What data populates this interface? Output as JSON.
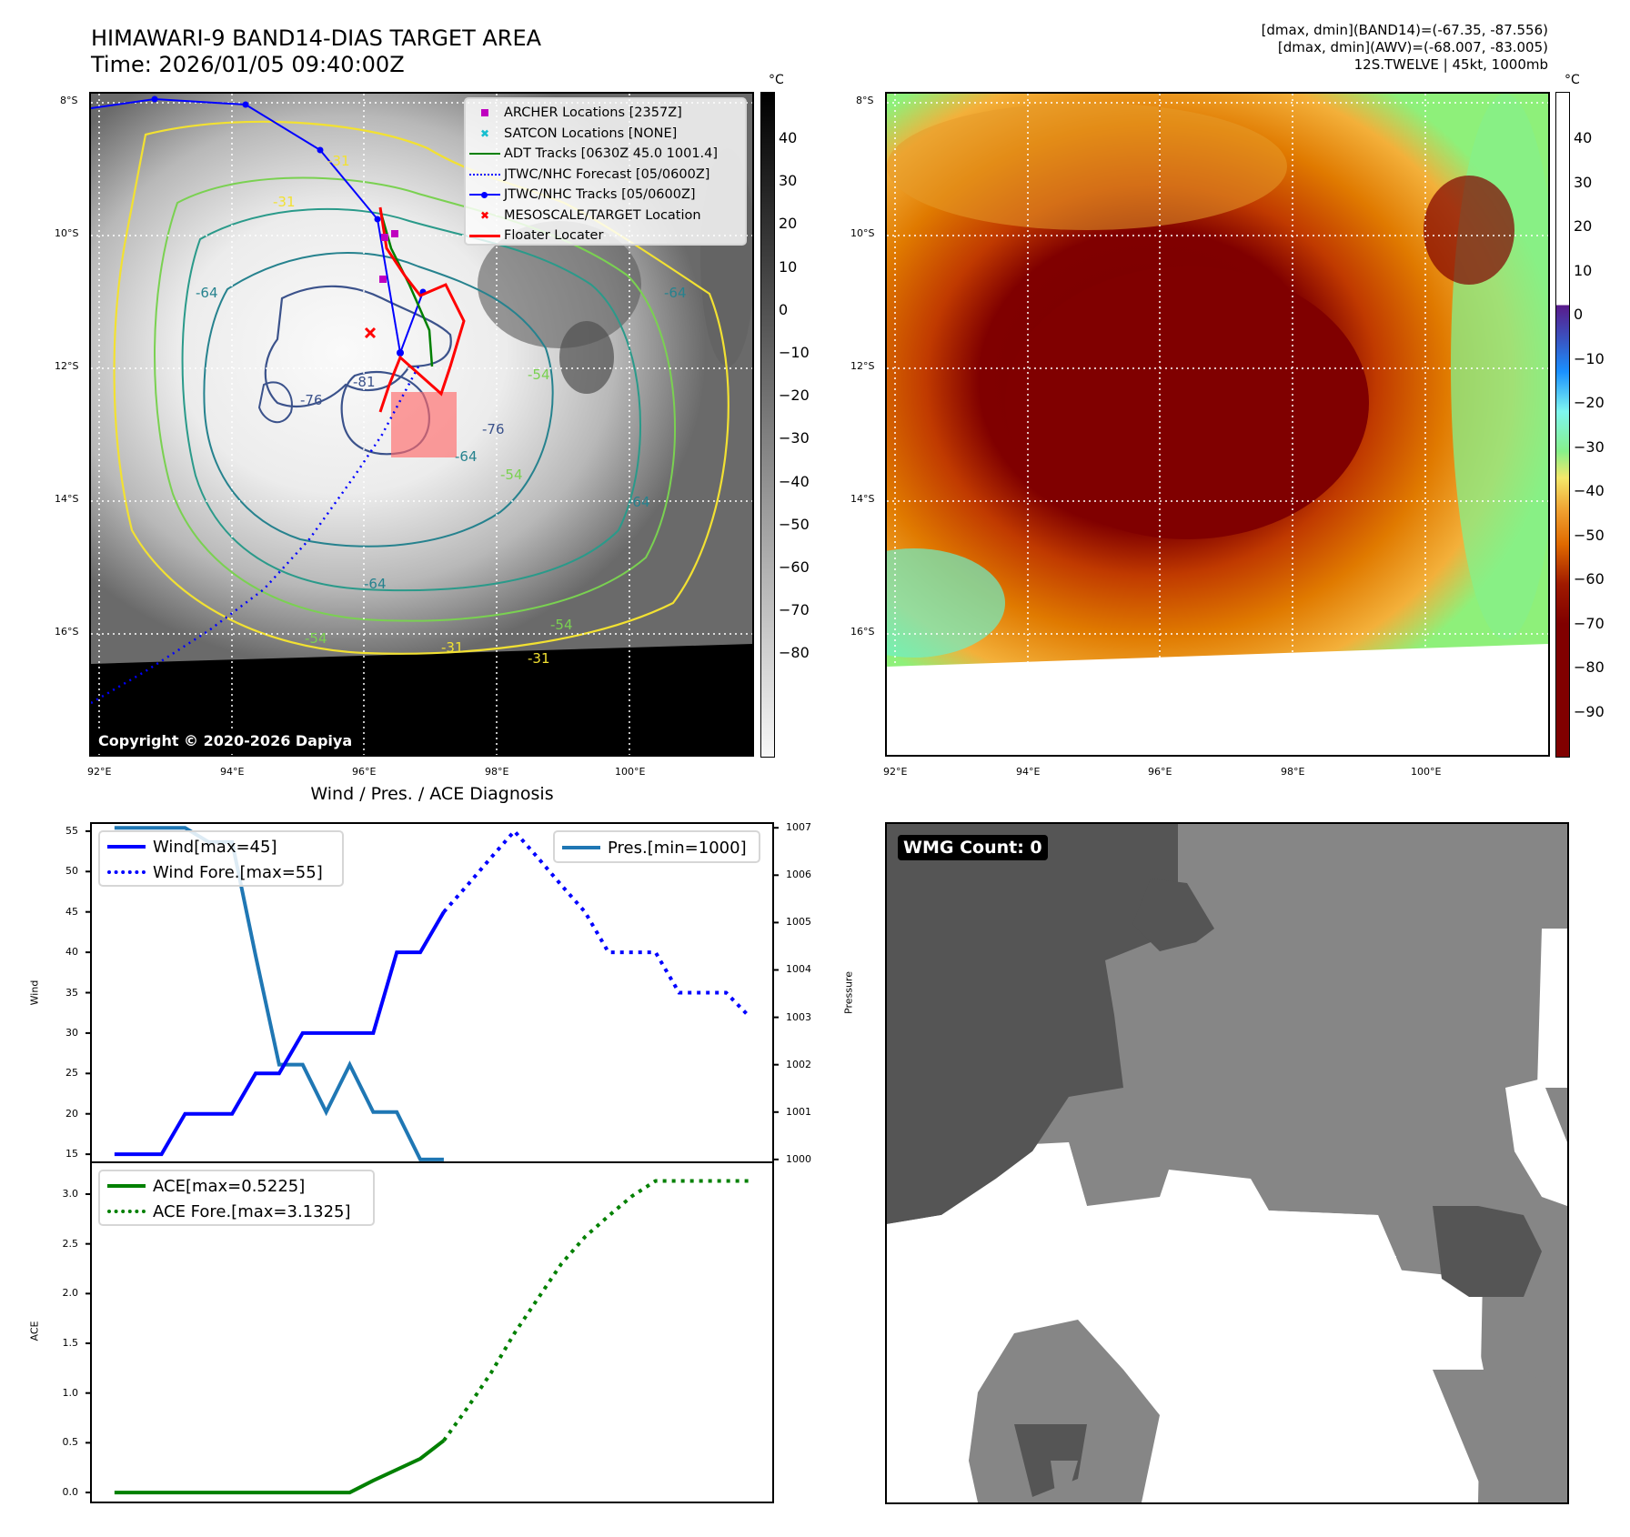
{
  "header": {
    "title_line1": "HIMAWARI-9 BAND14-DIAS TARGET AREA",
    "title_line2": "Time: 2026/01/05 09:40:00Z",
    "stats_line1": "[dmax, dmin](BAND14)=(-67.35, -87.556)",
    "stats_line2": "[dmax, dmin](AWV)=(-68.007, -83.005)",
    "stats_line3": "12S.TWELVE | 45kt, 1000mb"
  },
  "map_axes": {
    "lat_labels": [
      "8°S",
      "10°S",
      "12°S",
      "14°S",
      "16°S"
    ],
    "lon_labels": [
      "92°E",
      "94°E",
      "96°E",
      "98°E",
      "100°E"
    ]
  },
  "ir_panel": {
    "copyright": "Copyright © 2020-2026 Dapiya",
    "colorbar_unit": "°C",
    "colorbar_ticks": [
      "40",
      "30",
      "20",
      "10",
      "0",
      "−10",
      "−20",
      "−30",
      "−40",
      "−50",
      "−60",
      "−70",
      "−80"
    ],
    "contour_labels": [
      "-31",
      "-31",
      "-64",
      "-64",
      "-76",
      "-81",
      "-76",
      "-54",
      "-64",
      "-64",
      "-54",
      "-64",
      "-54",
      "-31",
      "-31",
      "-54"
    ],
    "legend": [
      {
        "label": "ARCHER Locations [2357Z]",
        "symbol": "square-marker",
        "color": "#bf00bf"
      },
      {
        "label": "SATCON Locations [NONE]",
        "symbol": "x-marker",
        "color": "#17becf"
      },
      {
        "label": "ADT Tracks [0630Z 45.0 1001.4]",
        "symbol": "solid-line",
        "color": "#008000"
      },
      {
        "label": "JTWC/NHC Forecast [05/0600Z]",
        "symbol": "dotted-line",
        "color": "#0000ff"
      },
      {
        "label": "JTWC/NHC Tracks [05/0600Z]",
        "symbol": "line-dot",
        "color": "#0000ff"
      },
      {
        "label": "MESOSCALE/TARGET Location",
        "symbol": "x-marker",
        "color": "#ff0000"
      },
      {
        "label": "Floater Locater",
        "symbol": "solid-line",
        "color": "#ff0000"
      }
    ]
  },
  "awv_panel": {
    "colorbar_unit": "°C",
    "colorbar_ticks": [
      "40",
      "30",
      "20",
      "10",
      "0",
      "−10",
      "−20",
      "−30",
      "−40",
      "−50",
      "−60",
      "−70",
      "−80",
      "−90"
    ]
  },
  "wmg_panel": {
    "badge": "WMG Count: 0"
  },
  "chart_data": [
    {
      "type": "line",
      "title": "Wind / Pres. / ACE Diagnosis",
      "ylabel": "Wind",
      "y2label": "Pressure",
      "ylim": [
        14,
        56
      ],
      "y2lim": [
        999.94,
        1007.1
      ],
      "yticks": [
        "15",
        "20",
        "25",
        "30",
        "35",
        "40",
        "45",
        "50",
        "55"
      ],
      "y2ticks": [
        "1000",
        "1001",
        "1002",
        "1003",
        "1004",
        "1005",
        "1006",
        "1007"
      ],
      "xlim": [
        -1,
        28
      ],
      "series": [
        {
          "name": "Wind[max=45]",
          "style": "solid",
          "color": "#0000ff",
          "axis": "left",
          "x": [
            0,
            1,
            2,
            3,
            4,
            5,
            6,
            7,
            8,
            9,
            10,
            11,
            12,
            13,
            14
          ],
          "values": [
            15,
            15,
            15,
            20,
            20,
            20,
            25,
            25,
            30,
            30,
            30,
            30,
            40,
            40,
            45
          ]
        },
        {
          "name": "Wind Fore.[max=55]",
          "style": "dotted",
          "color": "#0000ff",
          "axis": "left",
          "x": [
            14,
            15,
            16,
            17,
            18,
            19,
            20,
            21,
            22,
            23,
            24,
            25,
            26,
            27
          ],
          "values": [
            45,
            48.3,
            51.7,
            55,
            51.7,
            48.3,
            45,
            40,
            40,
            40,
            35,
            35,
            35,
            32
          ]
        },
        {
          "name": "Pres.[min=1000]",
          "style": "solid",
          "color": "#1f77b4",
          "axis": "right",
          "x": [
            0,
            1,
            2,
            3,
            4,
            5,
            6,
            7,
            8,
            9,
            10,
            11,
            12,
            13,
            14
          ],
          "values": [
            1007,
            1007,
            1007,
            1007,
            1006.7,
            1006.7,
            1004.3,
            1002,
            1002,
            1001,
            1002,
            1001,
            1001,
            1000,
            1000
          ]
        }
      ]
    },
    {
      "type": "line",
      "ylabel": "ACE",
      "ylim": [
        -0.1,
        3.32
      ],
      "yticks": [
        "0.0",
        "0.5",
        "1.0",
        "1.5",
        "2.0",
        "2.5",
        "3.0"
      ],
      "xlim": [
        -1,
        28
      ],
      "series": [
        {
          "name": "ACE[max=0.5225]",
          "style": "solid",
          "color": "#008000",
          "x": [
            0,
            1,
            2,
            3,
            4,
            5,
            6,
            7,
            8,
            9,
            10,
            11,
            12,
            13,
            14
          ],
          "values": [
            0,
            0,
            0,
            0,
            0,
            0,
            0,
            0,
            0,
            0,
            0,
            0.12,
            0.23,
            0.34,
            0.5225
          ]
        },
        {
          "name": "ACE Fore.[max=3.1325]",
          "style": "dotted",
          "color": "#008000",
          "x": [
            14,
            15,
            16,
            17,
            18,
            19,
            20,
            21,
            22,
            23,
            24,
            25,
            26,
            27
          ],
          "values": [
            0.5225,
            0.85,
            1.2,
            1.6,
            1.95,
            2.3,
            2.57,
            2.78,
            2.98,
            3.1325,
            3.1325,
            3.1325,
            3.1325,
            3.1325
          ]
        }
      ]
    }
  ]
}
